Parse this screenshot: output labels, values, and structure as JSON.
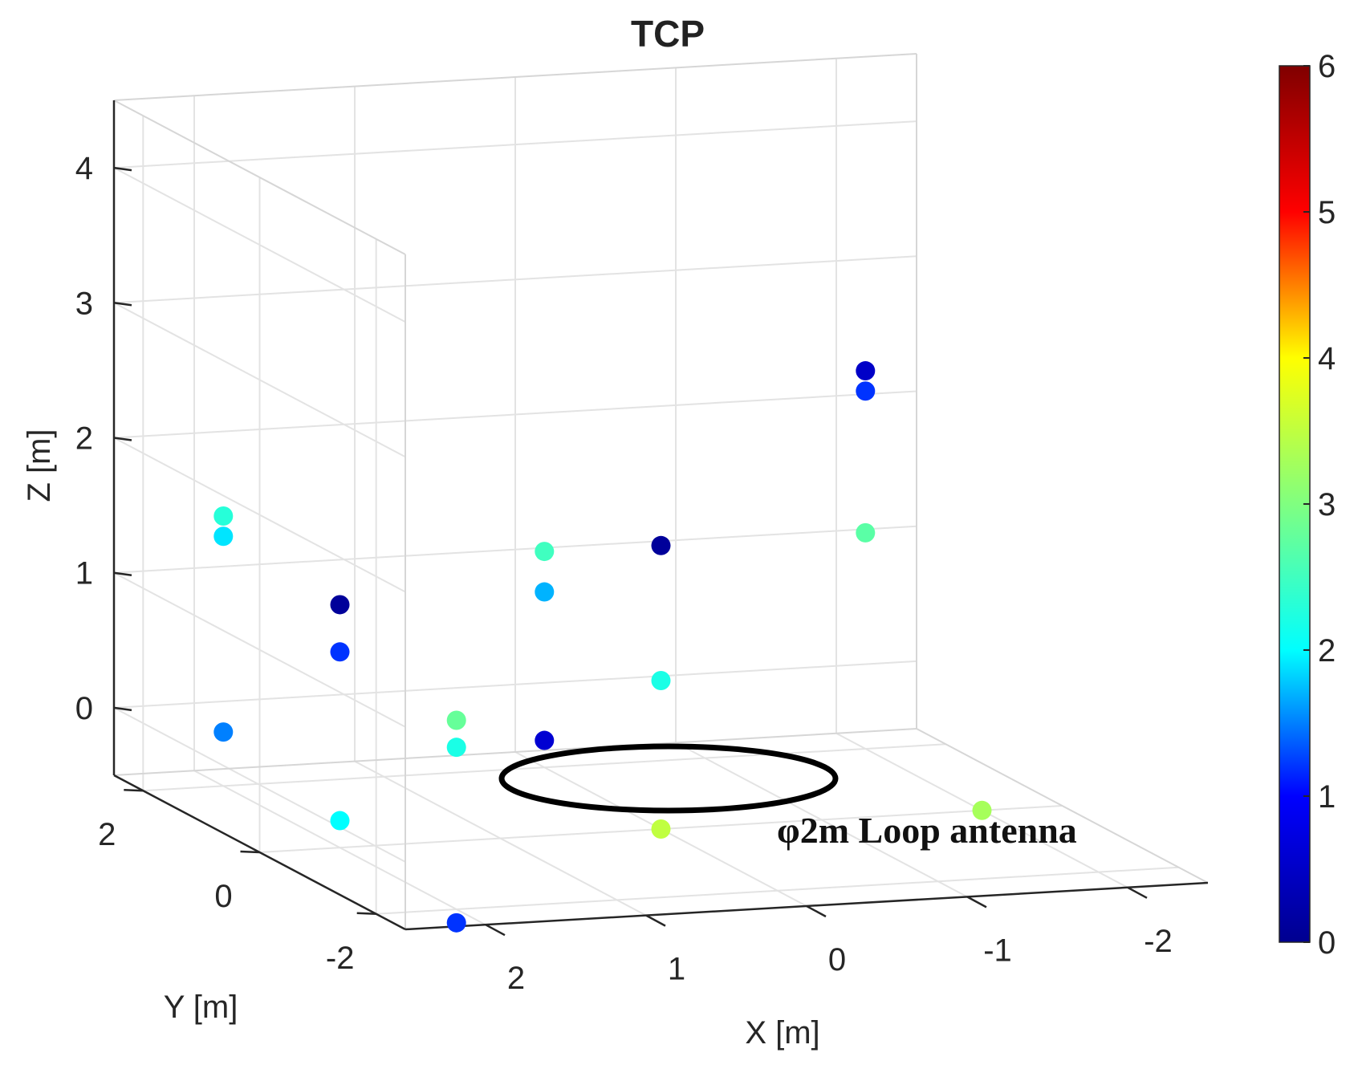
{
  "chart_data": {
    "type": "scatter",
    "title": "TCP",
    "xlabel": "X [m]",
    "ylabel": "Y [m]",
    "zlabel": "Z [m]",
    "xlim": [
      -2.5,
      2.5
    ],
    "ylim": [
      -2.5,
      2.5
    ],
    "zlim": [
      -0.5,
      4.5
    ],
    "xticks": [
      {
        "v": 2,
        "label": "2"
      },
      {
        "v": 1,
        "label": "1"
      },
      {
        "v": 0,
        "label": "0"
      },
      {
        "v": -1,
        "label": "-1"
      },
      {
        "v": -2,
        "label": "-2"
      }
    ],
    "yticks": [
      {
        "v": 2,
        "label": "2"
      },
      {
        "v": 0,
        "label": "0"
      },
      {
        "v": -2,
        "label": "-2"
      }
    ],
    "zticks": [
      {
        "v": 0,
        "label": "0"
      },
      {
        "v": 1,
        "label": "1"
      },
      {
        "v": 2,
        "label": "2"
      },
      {
        "v": 3,
        "label": "3"
      },
      {
        "v": 4,
        "label": "4"
      }
    ],
    "colorbar": {
      "min": 0,
      "max": 6,
      "ticks": [
        {
          "v": 0,
          "label": "0"
        },
        {
          "v": 1,
          "label": "1"
        },
        {
          "v": 2,
          "label": "2"
        },
        {
          "v": 3,
          "label": "3"
        },
        {
          "v": 4,
          "label": "4"
        },
        {
          "v": 5,
          "label": "5"
        },
        {
          "v": 6,
          "label": "6"
        }
      ],
      "colormap": [
        "#00008f",
        "#0000ff",
        "#00ffff",
        "#80ff80",
        "#ffff00",
        "#ff0000",
        "#800000"
      ]
    },
    "points": [
      {
        "x": 2,
        "y": 2,
        "z": 1.5,
        "value": 2.3
      },
      {
        "x": 2,
        "y": 2,
        "z": 1.35,
        "value": 1.9
      },
      {
        "x": 2,
        "y": 2,
        "z": -0.1,
        "value": 1.5
      },
      {
        "x": 2,
        "y": 0,
        "z": 1.3,
        "value": 0.1
      },
      {
        "x": 2,
        "y": 0,
        "z": 0.95,
        "value": 1.2
      },
      {
        "x": 2,
        "y": 0,
        "z": -0.3,
        "value": 2.0
      },
      {
        "x": 2,
        "y": -2,
        "z": 0.9,
        "value": 2.8
      },
      {
        "x": 2,
        "y": -2,
        "z": 0.7,
        "value": 2.2
      },
      {
        "x": 2,
        "y": -2,
        "z": -0.6,
        "value": 1.2
      },
      {
        "x": 0,
        "y": 2,
        "z": 1.1,
        "value": 2.5
      },
      {
        "x": 0,
        "y": 2,
        "z": 0.8,
        "value": 1.7
      },
      {
        "x": 0,
        "y": 2,
        "z": -0.3,
        "value": 0.6
      },
      {
        "x": 0,
        "y": 0,
        "z": 1.6,
        "value": 0.1
      },
      {
        "x": 0,
        "y": 0,
        "z": 0.6,
        "value": 2.2
      },
      {
        "x": 0,
        "y": 0,
        "z": -0.5,
        "value": 3.5
      },
      {
        "x": -2,
        "y": 2,
        "z": 2.3,
        "value": 0.5
      },
      {
        "x": -2,
        "y": 2,
        "z": 2.15,
        "value": 1.2
      },
      {
        "x": -2,
        "y": 2,
        "z": 1.1,
        "value": 2.7
      },
      {
        "x": -2,
        "y": 0,
        "z": -0.5,
        "value": 3.3
      }
    ],
    "annotation": "φ2m Loop antenna"
  }
}
